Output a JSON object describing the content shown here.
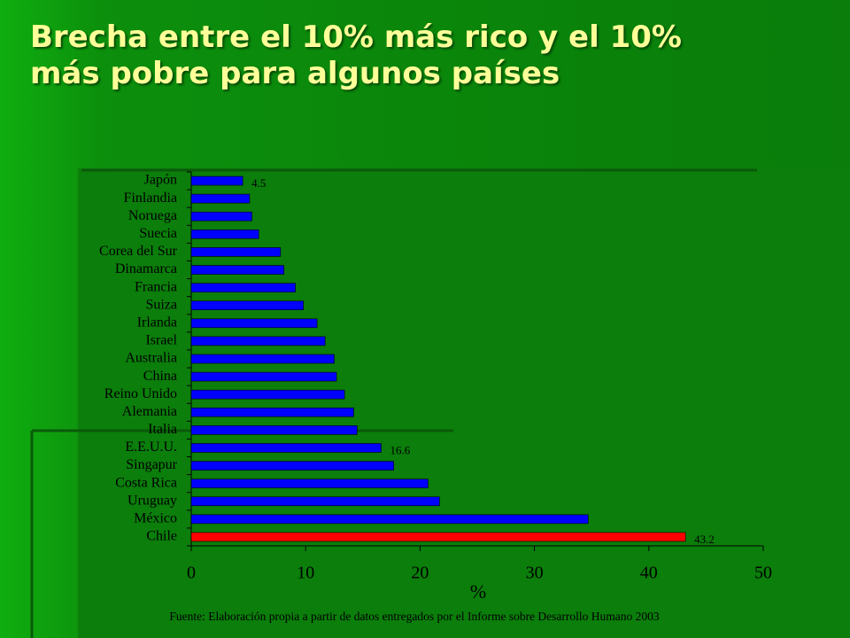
{
  "chart_data": {
    "type": "bar",
    "orientation": "horizontal",
    "title": "Brecha entre el 10% más rico y el 10% más pobre para algunos países",
    "categories": [
      "Japón",
      "Finlandia",
      "Noruega",
      "Suecia",
      "Corea del Sur",
      "Dinamarca",
      "Francia",
      "Suiza",
      "Irlanda",
      "Israel",
      "Australia",
      "China",
      "Reino Unido",
      "Alemania",
      "Italia",
      "E.E.U.U.",
      "Singapur",
      "Costa Rica",
      "Uruguay",
      "México",
      "Chile"
    ],
    "values": [
      4.5,
      5.1,
      5.3,
      5.9,
      7.8,
      8.1,
      9.1,
      9.8,
      11.0,
      11.7,
      12.5,
      12.7,
      13.4,
      14.2,
      14.5,
      16.6,
      17.7,
      20.7,
      21.7,
      34.7,
      43.2
    ],
    "value_labels": [
      "4.5",
      null,
      null,
      null,
      null,
      null,
      null,
      null,
      null,
      null,
      null,
      null,
      null,
      null,
      null,
      "16.6",
      null,
      null,
      null,
      null,
      "43.2"
    ],
    "colors": [
      "#0000ff",
      "#0000ff",
      "#0000ff",
      "#0000ff",
      "#0000ff",
      "#0000ff",
      "#0000ff",
      "#0000ff",
      "#0000ff",
      "#0000ff",
      "#0000ff",
      "#0000ff",
      "#0000ff",
      "#0000ff",
      "#0000ff",
      "#0000ff",
      "#0000ff",
      "#0000ff",
      "#0000ff",
      "#0000ff",
      "#ff0000"
    ],
    "xlim": [
      0,
      50
    ],
    "xticks": [
      0,
      10,
      20,
      30,
      40,
      50
    ],
    "x_label": "%",
    "source": "Fuente: Elaboración propia a partir de datos entregados por el Informe sobre Desarrollo Humano 2003",
    "grid": false
  }
}
